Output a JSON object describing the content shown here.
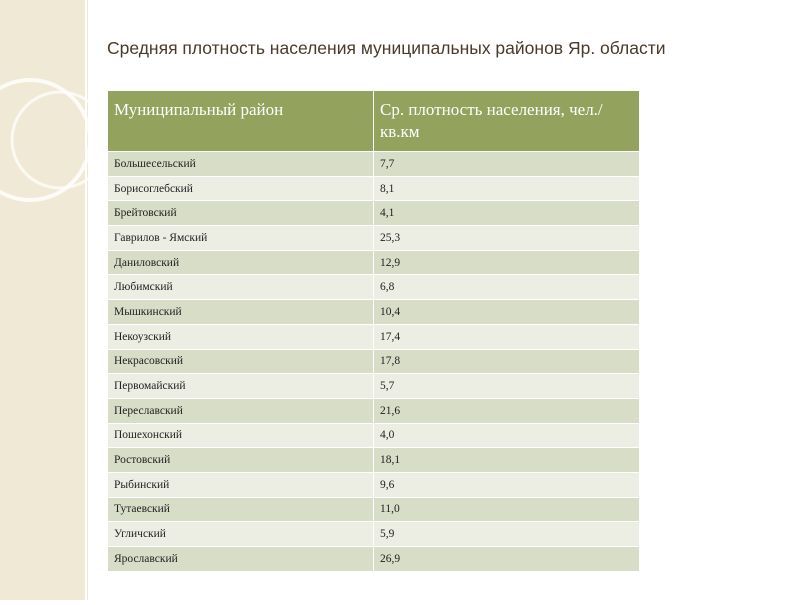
{
  "title": "Средняя плотность населения муниципальных районов Яр. области",
  "table": {
    "header": [
      "Муниципальный район",
      "Ср. плотность населения, чел./ кв.км"
    ],
    "rows": [
      [
        "Большесельский",
        "7,7"
      ],
      [
        "Борисоглебский",
        "8,1"
      ],
      [
        "Брейтовский",
        "4,1"
      ],
      [
        "Гаврилов - Ямский",
        "25,3"
      ],
      [
        "Даниловский",
        "12,9"
      ],
      [
        "Любимский",
        "6,8"
      ],
      [
        "Мышкинский",
        "10,4"
      ],
      [
        "Некоузский",
        "17,4"
      ],
      [
        "Некрасовский",
        "17,8"
      ],
      [
        "Первомайский",
        "5,7"
      ],
      [
        "Переславский",
        "21,6"
      ],
      [
        "Пошехонский",
        "4,0"
      ],
      [
        "Ростовский",
        "18,1"
      ],
      [
        "Рыбинский",
        "9,6"
      ],
      [
        "Тутаевский",
        "11,0"
      ],
      [
        "Угличский",
        "5,9"
      ],
      [
        "Ярославский",
        "26,9"
      ]
    ]
  }
}
